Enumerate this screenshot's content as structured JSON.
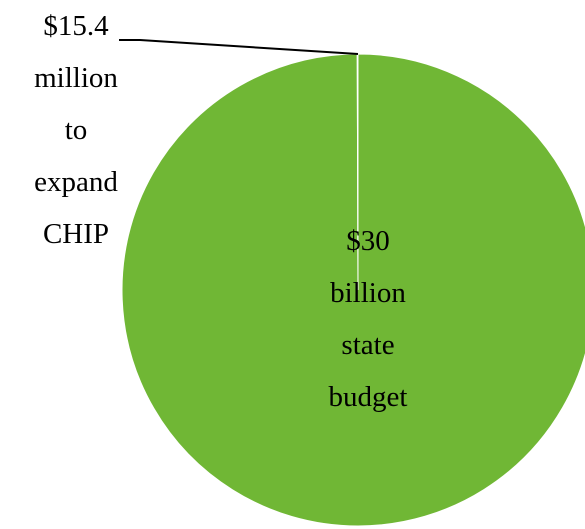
{
  "chart_data": {
    "type": "pie",
    "title": "",
    "slices": [
      {
        "label_lines": [
          "$15.4",
          "million",
          "to",
          "expand",
          "CHIP"
        ],
        "value_millions": 15.4
      },
      {
        "label_lines": [
          "$30",
          "billion",
          "state",
          "budget"
        ],
        "value_millions": 30000
      }
    ],
    "colors": {
      "main_slice": "#70b735",
      "small_slice": "#70b735",
      "slice_border": "#ffffff",
      "leader_line": "#000000"
    },
    "legend": "none"
  }
}
